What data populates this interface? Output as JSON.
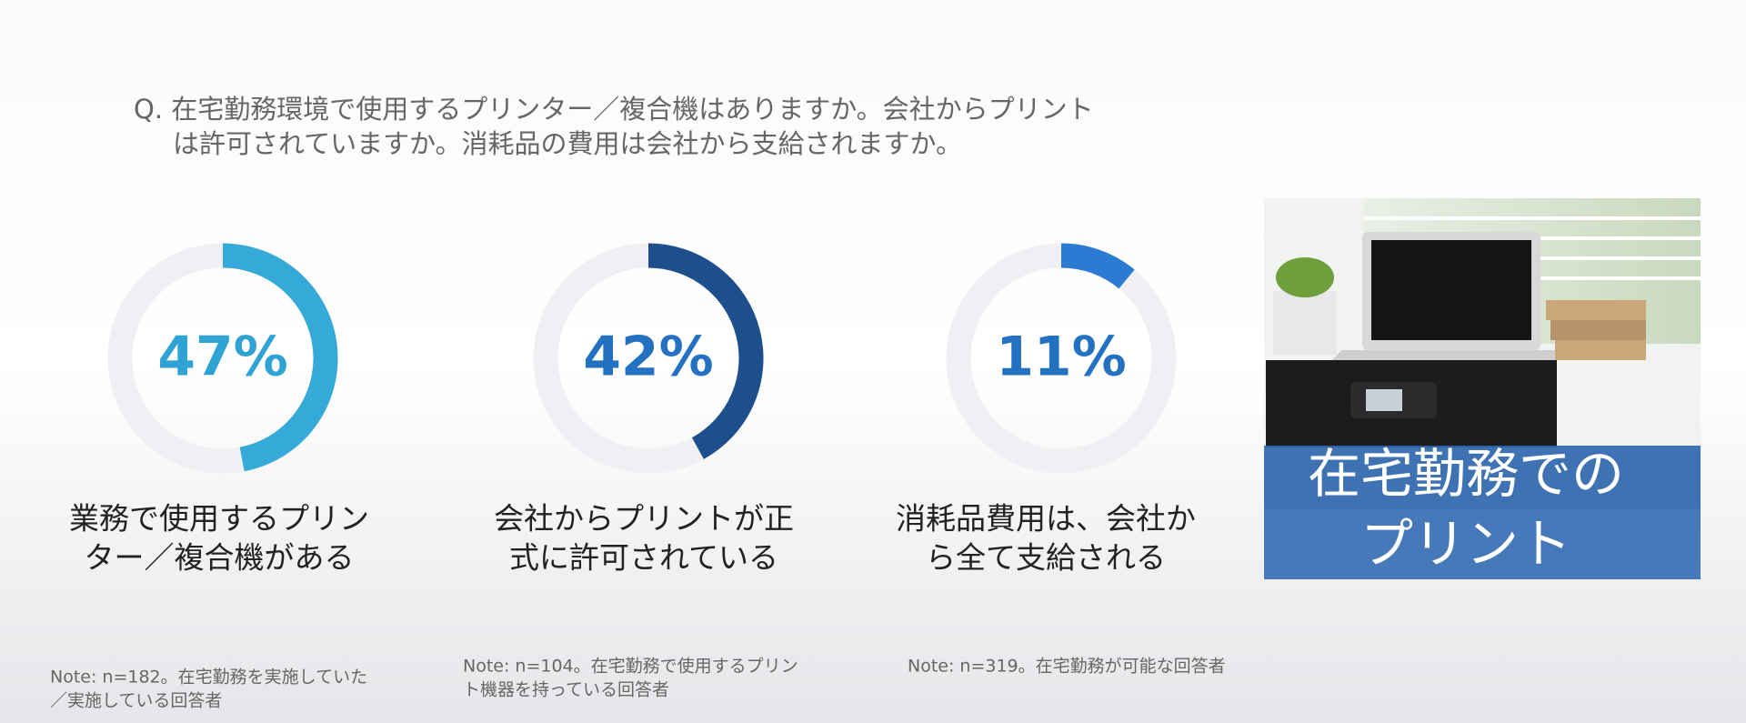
{
  "question": [
    "Q. 在宅勤務環境で使用するプリンター／複合機はありますか。会社からプリント",
    "は許可されていますか。消耗品の費用は会社から支給されますか。"
  ],
  "chart_data": [
    {
      "type": "donut",
      "values": [
        47
      ],
      "value_labels": [
        "47%"
      ],
      "color": "#35a9d7",
      "label_color": "#2fa3d3",
      "caption": [
        "業務で使用するプリン",
        "ター／複合機がある"
      ],
      "note": [
        "Note: n=182。在宅勤務を実施していた",
        "／実施している回答者"
      ]
    },
    {
      "type": "donut",
      "values": [
        42
      ],
      "value_labels": [
        "42%"
      ],
      "color": "#1d4f8d",
      "label_color": "#2571c1",
      "caption": [
        "会社からプリントが正",
        "式に許可されている"
      ],
      "note": [
        "Note: n=104。在宅勤務で使用するプリン",
        "ト機器を持っている回答者"
      ]
    },
    {
      "type": "donut",
      "values": [
        11
      ],
      "value_labels": [
        "11%"
      ],
      "color": "#2a7bd1",
      "label_color": "#2571c1",
      "caption": [
        "消耗品費用は、会社か",
        "ら全て支給される"
      ],
      "note": [
        "Note: n=319。在宅勤務が可能な回答者"
      ]
    }
  ],
  "image_caption": [
    "在宅勤務での",
    "プリント"
  ]
}
